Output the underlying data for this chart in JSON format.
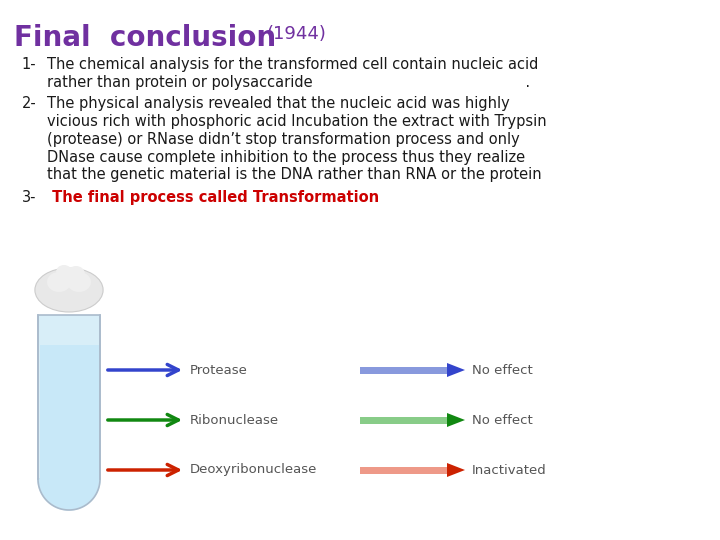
{
  "title": "Final  conclusion",
  "title_year": "(1944)",
  "title_color": "#7030a0",
  "title_fontsize": 20,
  "year_fontsize": 13,
  "background_color": "#ffffff",
  "text_color": "#1a1a1a",
  "para1_label": "1-",
  "para1_line1": "The chemical analysis for the transformed cell contain nucleic acid",
  "para1_line2": "rather than protein or polysaccaride                                              .",
  "para2_label": "2-",
  "para2_line1": "The physical analysis revealed that the nucleic acid was highly",
  "para2_line2": "vicious rich with phosphoric acid Incubation the extract with Trypsin",
  "para2_line3": "(protease) or RNase didn’t stop transformation process and only",
  "para2_line4": "DNase cause complete inhibition to the process thus they realize",
  "para2_line5": "that the genetic material is the DNA rather than RNA or the protein",
  "para3_label": "3-",
  "para3_text": " The final process called Transformation",
  "para3_color": "#cc0000",
  "body_fontsize": 10.5,
  "label_indent": 0.03,
  "text_indent": 0.065,
  "arrows": [
    {
      "label": "Protease",
      "result": "No effect",
      "color_solid": "#3344cc",
      "color_fade": "#8899dd"
    },
    {
      "label": "Ribonuclease",
      "result": "No effect",
      "color_solid": "#118811",
      "color_fade": "#88cc88"
    },
    {
      "label": "Deoxyribonuclease",
      "result": "Inactivated",
      "color_solid": "#cc2200",
      "color_fade": "#ee9988"
    }
  ],
  "arrow_label_fontsize": 9.5,
  "arrow_label_color": "#555555"
}
